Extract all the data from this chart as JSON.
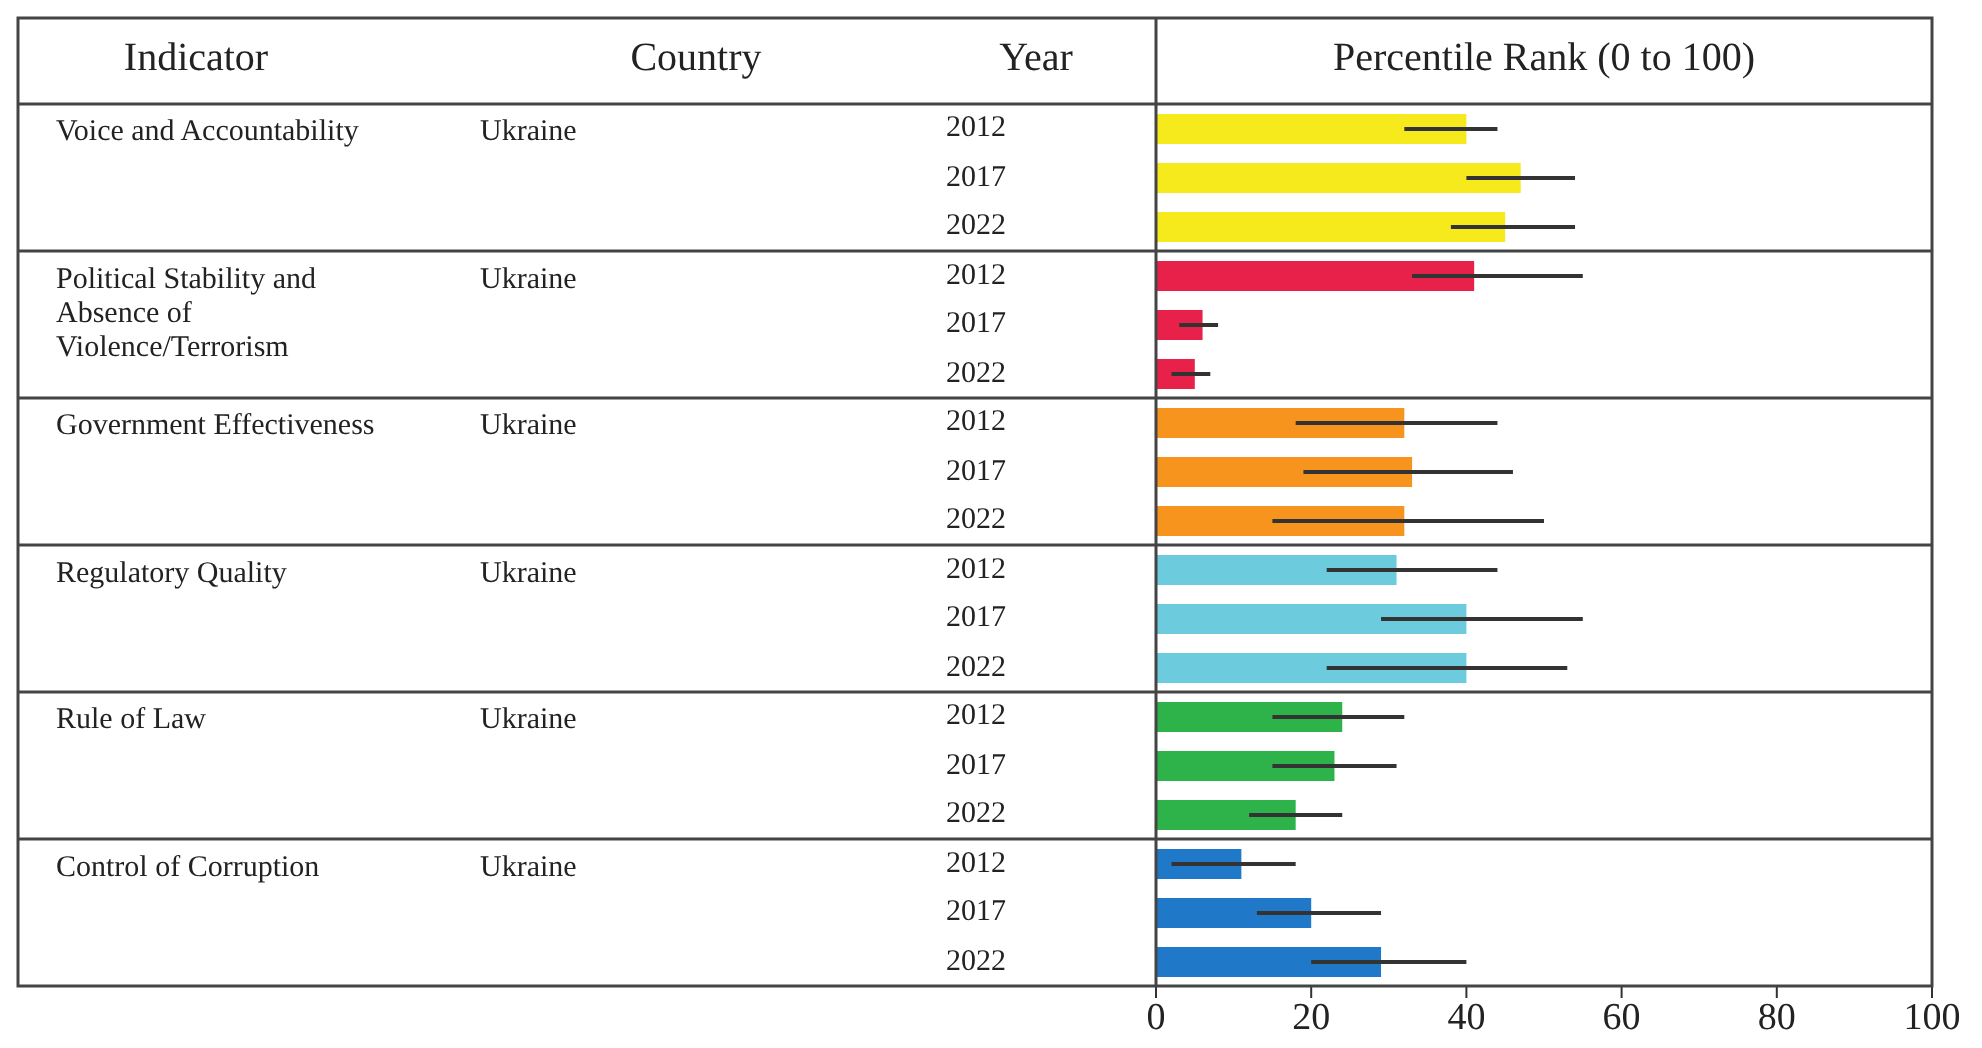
{
  "chart_data": {
    "type": "bar",
    "orientation": "horizontal",
    "title": "Percentile Rank (0 to 100)",
    "annotations": [
      "Indicator",
      "Country",
      "Year",
      "Voice and Accountability",
      "Ukraine",
      "Political Stability and Absence of Violence/Terrorism",
      "Ukraine",
      "Government Effectiveness",
      "Ukraine",
      "Regulatory Quality",
      "Ukraine",
      "Rule of Law",
      "Ukraine",
      "Control of Corruption",
      "Ukraine"
    ],
    "categories": [
      "2012",
      "2017",
      "2022",
      "2012",
      "2017",
      "2022",
      "2012",
      "2017",
      "2022",
      "2012",
      "2017",
      "2022",
      "2012",
      "2017",
      "2022",
      "2012",
      "2017",
      "2022"
    ],
    "values": [
      40,
      47,
      45,
      41,
      6,
      5,
      32,
      33,
      32,
      31,
      40,
      40,
      24,
      23,
      18,
      11,
      20,
      29
    ],
    "colors": [
      "#f7ea1c",
      "#f7ea1c",
      "#f7ea1c",
      "#e8214a",
      "#e8214a",
      "#e8214a",
      "#f7941d",
      "#f7941d",
      "#f7941d",
      "#6ccbdc",
      "#6ccbdc",
      "#6ccbdc",
      "#2db34a",
      "#2db34a",
      "#2db34a",
      "#1f78c8",
      "#1f78c8",
      "#1f78c8"
    ],
    "errors": [
      [
        32,
        44
      ],
      [
        40,
        54
      ],
      [
        38,
        54
      ],
      [
        33,
        55
      ],
      [
        3,
        8
      ],
      [
        2,
        7
      ],
      [
        18,
        44
      ],
      [
        19,
        46
      ],
      [
        15,
        50
      ],
      [
        22,
        44
      ],
      [
        29,
        55
      ],
      [
        22,
        53
      ],
      [
        15,
        32
      ],
      [
        15,
        31
      ],
      [
        12,
        24
      ],
      [
        2,
        18
      ],
      [
        13,
        29
      ],
      [
        20,
        40
      ]
    ],
    "xlim": [
      0,
      100
    ],
    "xticks": [
      0,
      20,
      40,
      60,
      80,
      100
    ]
  }
}
